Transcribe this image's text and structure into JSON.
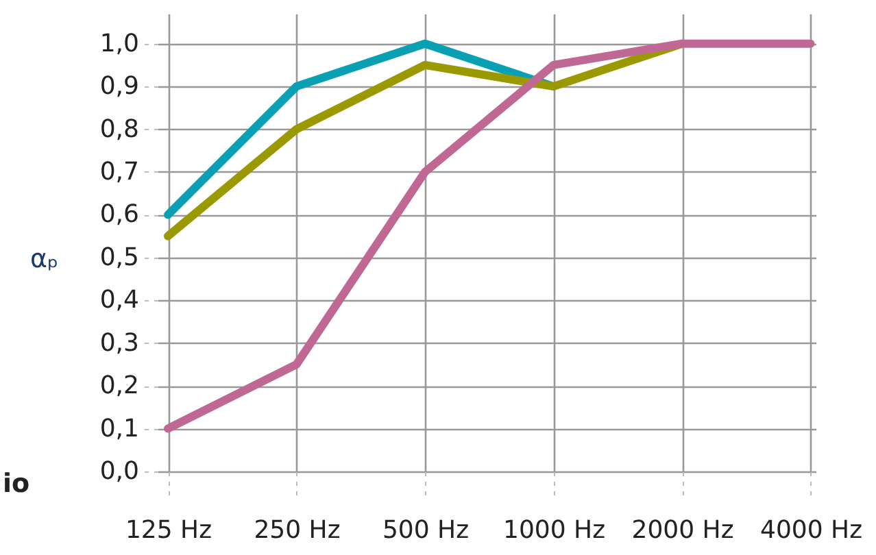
{
  "chart_data": {
    "type": "line",
    "ylabel": "αₚ",
    "annotations": [
      "io"
    ],
    "categories": [
      "125 Hz",
      "250 Hz",
      "500 Hz",
      "1000 Hz",
      "2000 Hz",
      "4000 Hz"
    ],
    "series": [
      {
        "color": "#0aa0b4",
        "values": [
          0.6,
          0.9,
          1.0,
          0.9,
          null,
          null
        ]
      },
      {
        "color": "#9a9a00",
        "values": [
          0.55,
          0.8,
          0.95,
          0.9,
          1.0,
          null
        ]
      },
      {
        "color": "#c06894",
        "values": [
          0.1,
          0.25,
          0.7,
          0.95,
          1.0,
          1.0
        ]
      }
    ],
    "ylim": [
      0,
      1.07
    ],
    "yticks": [
      {
        "value": 0,
        "label": "0,0"
      },
      {
        "value": 0.1,
        "label": "0,1"
      },
      {
        "value": 0.2,
        "label": "0,2"
      },
      {
        "value": 0.3,
        "label": "0,3"
      },
      {
        "value": 0.4,
        "label": "0,4"
      },
      {
        "value": 0.5,
        "label": "0,5"
      },
      {
        "value": 0.6,
        "label": "0,6"
      },
      {
        "value": 0.7,
        "label": "0,7"
      },
      {
        "value": 0.8,
        "label": "0,8"
      },
      {
        "value": 0.9,
        "label": "0,9"
      },
      {
        "value": 1,
        "label": "1,0"
      }
    ],
    "grid": true,
    "marker": "none",
    "line_style": "solid"
  }
}
